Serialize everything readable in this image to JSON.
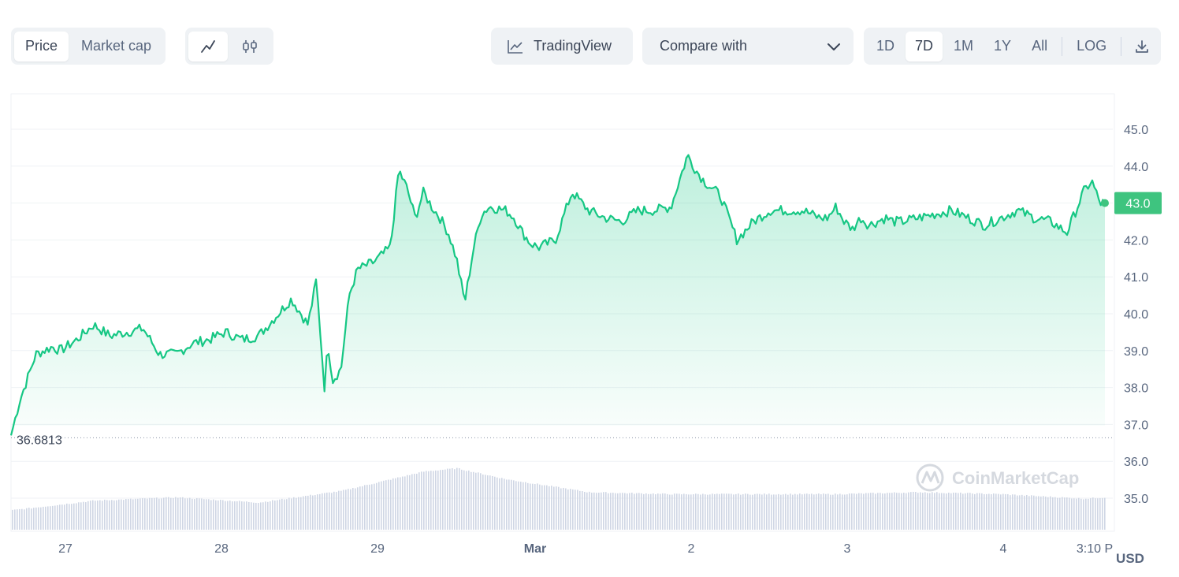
{
  "toolbar": {
    "tabs": [
      {
        "label": "Price",
        "active": true
      },
      {
        "label": "Market cap",
        "active": false
      }
    ],
    "chart_types": [
      {
        "icon": "line-chart-icon",
        "active": true
      },
      {
        "icon": "candlestick-icon",
        "active": false
      }
    ],
    "tradingview_label": "TradingView",
    "compare_label": "Compare with",
    "ranges": [
      {
        "label": "1D",
        "active": false
      },
      {
        "label": "7D",
        "active": true
      },
      {
        "label": "1M",
        "active": false
      },
      {
        "label": "1Y",
        "active": false
      },
      {
        "label": "All",
        "active": false
      }
    ],
    "log_label": "LOG",
    "download_icon": "download-icon"
  },
  "colors": {
    "line": "#16c784",
    "area": "#16c784",
    "current_badge": "#3ec47f",
    "volume": "#cfd6e4"
  },
  "watermark": "CoinMarketCap",
  "chart_data": {
    "type": "area",
    "currency_label": "USD",
    "ylim": [
      34.5,
      45.5
    ],
    "yticks": [
      "45.0",
      "44.0",
      "43.0",
      "42.0",
      "41.0",
      "40.0",
      "39.0",
      "38.0",
      "37.0",
      "36.0",
      "35.0"
    ],
    "x_ticks": [
      "27",
      "28",
      "29",
      "Mar",
      "2",
      "3",
      "4",
      "3:10 P"
    ],
    "min_label": "36.6813",
    "min_value": 36.6813,
    "current_label": "43.0",
    "current_value": 43.0,
    "x": [
      0,
      0.05,
      0.15,
      0.25,
      0.3,
      0.4,
      0.5,
      0.6,
      0.7,
      0.8,
      0.9,
      1.0,
      1.1,
      1.2,
      1.3,
      1.4,
      1.5,
      1.6,
      1.7,
      1.8,
      1.85,
      1.9,
      1.92,
      1.95,
      2.0,
      2.05,
      2.1,
      2.15,
      2.2,
      2.3,
      2.35,
      2.4,
      2.45,
      2.5,
      2.55,
      2.6,
      2.65,
      2.7,
      2.75,
      2.8,
      2.85,
      2.9,
      3.0,
      3.05,
      3.1,
      3.15,
      3.2,
      3.3,
      3.4,
      3.5,
      3.6,
      3.7,
      3.8,
      3.9,
      4.0,
      4.1,
      4.15,
      4.2,
      4.3,
      4.4,
      4.5,
      4.6,
      4.7,
      4.8,
      4.9,
      4.95,
      5.0,
      5.05,
      5.1,
      5.15,
      5.2,
      5.3,
      5.35,
      5.4,
      5.5,
      5.6,
      5.7,
      5.8,
      5.9,
      6.0,
      6.1,
      6.2,
      6.3,
      6.4,
      6.5,
      6.55,
      6.6,
      6.63
    ],
    "price": [
      36.7,
      37.6,
      38.9,
      39.1,
      39.0,
      39.3,
      39.7,
      39.4,
      39.5,
      39.6,
      38.9,
      38.9,
      39.2,
      39.3,
      39.5,
      39.3,
      39.4,
      39.9,
      40.4,
      39.7,
      40.9,
      38.0,
      39.2,
      38.2,
      38.5,
      40.5,
      41.2,
      41.3,
      41.4,
      41.8,
      43.9,
      43.4,
      42.6,
      43.3,
      42.9,
      42.6,
      42.2,
      41.5,
      40.3,
      41.7,
      42.7,
      42.9,
      42.8,
      42.6,
      42.2,
      41.9,
      41.8,
      42.0,
      43.3,
      42.8,
      42.6,
      42.5,
      42.8,
      42.8,
      42.9,
      44.3,
      43.9,
      43.6,
      43.2,
      42.0,
      42.5,
      42.8,
      42.8,
      42.8,
      42.6,
      42.6,
      42.9,
      42.5,
      42.3,
      42.6,
      42.4,
      42.6,
      42.5,
      42.5,
      42.6,
      42.7,
      42.8,
      42.6,
      42.4,
      42.6,
      42.8,
      42.6,
      42.5,
      42.2,
      43.3,
      43.6,
      43.0,
      43.0
    ],
    "volume_x": [
      0,
      0.5,
      1.0,
      1.5,
      2.0,
      2.5,
      2.7,
      3.0,
      3.5,
      4.0,
      4.5,
      5.0,
      5.5,
      6.0,
      6.5,
      6.63
    ],
    "volume_level": [
      0.3,
      0.45,
      0.5,
      0.42,
      0.6,
      0.9,
      0.95,
      0.78,
      0.58,
      0.55,
      0.55,
      0.55,
      0.58,
      0.55,
      0.48,
      0.5
    ]
  }
}
